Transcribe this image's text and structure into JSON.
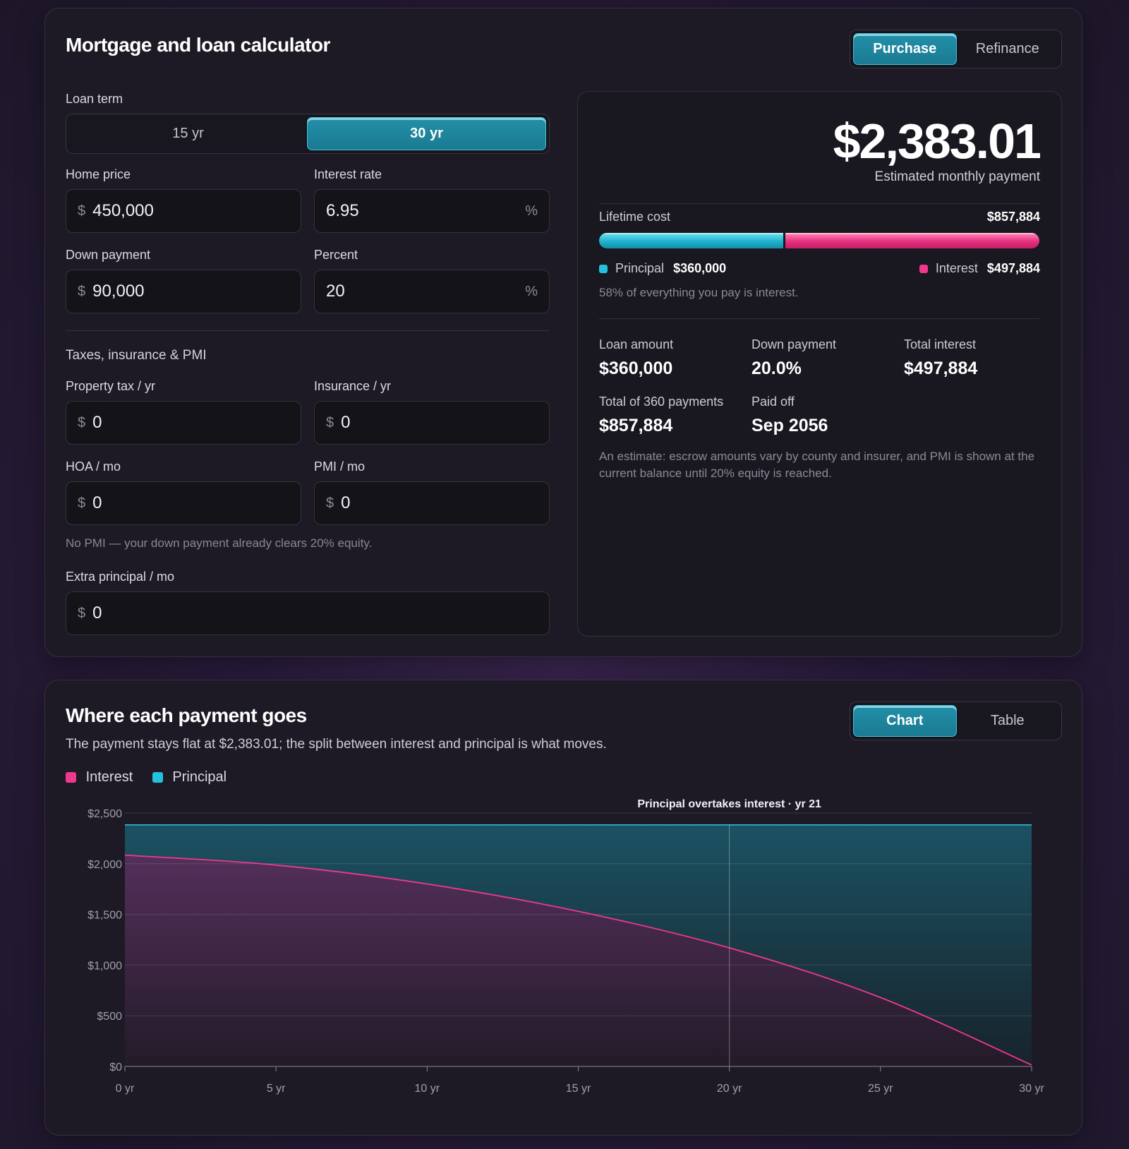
{
  "header": {
    "title": "Mortgage and loan calculator",
    "modes": [
      {
        "label": "Purchase",
        "active": true
      },
      {
        "label": "Refinance",
        "active": false
      }
    ]
  },
  "loan_term": {
    "label": "Loan term",
    "options": [
      {
        "label": "15 yr",
        "active": false
      },
      {
        "label": "30 yr",
        "active": true
      }
    ]
  },
  "fields": {
    "home_price": {
      "label": "Home price",
      "prefix": "$",
      "value": "450,000"
    },
    "interest_rate": {
      "label": "Interest rate",
      "value": "6.95",
      "suffix": "%"
    },
    "down_payment": {
      "label": "Down payment",
      "prefix": "$",
      "value": "90,000"
    },
    "percent": {
      "label": "Percent",
      "value": "20",
      "suffix": "%"
    },
    "property_tax": {
      "label": "Property tax / yr",
      "prefix": "$",
      "value": "0"
    },
    "insurance": {
      "label": "Insurance / yr",
      "prefix": "$",
      "value": "0"
    },
    "hoa": {
      "label": "HOA / mo",
      "prefix": "$",
      "value": "0"
    },
    "pmi": {
      "label": "PMI / mo",
      "prefix": "$",
      "value": "0"
    },
    "extra_principal": {
      "label": "Extra principal / mo",
      "prefix": "$",
      "value": "0"
    }
  },
  "taxes_section": {
    "label": "Taxes, insurance & PMI"
  },
  "pmi_hint": "No PMI — your down payment already clears 20% equity.",
  "summary": {
    "monthly_payment": "$2,383.01",
    "monthly_label": "Estimated monthly payment",
    "lifetime_label": "Lifetime cost",
    "lifetime_value": "$857,884",
    "principal_fraction": 0.42,
    "principal_label": "Principal",
    "principal_value": "$360,000",
    "interest_label": "Interest",
    "interest_value": "$497,884",
    "interest_note": "58% of everything you pay is interest.",
    "stats": {
      "loan_amount": {
        "label": "Loan amount",
        "value": "$360,000"
      },
      "down_payment": {
        "label": "Down payment",
        "value": "20.0%"
      },
      "total_interest": {
        "label": "Total interest",
        "value": "$497,884"
      },
      "total_payments": {
        "label": "Total of 360 payments",
        "value": "$857,884"
      },
      "paid_off": {
        "label": "Paid off",
        "value": "Sep 2056"
      }
    },
    "disclaimer": "An estimate: escrow amounts vary by county and insurer, and PMI is shown at the current balance until 20% equity is reached."
  },
  "chart_section": {
    "title": "Where each payment goes",
    "subtitle": "The payment stays flat at $2,383.01; the split between interest and principal is what moves.",
    "views": [
      {
        "label": "Chart",
        "active": true
      },
      {
        "label": "Table",
        "active": false
      }
    ],
    "legend": [
      {
        "label": "Interest",
        "color": "#f0388e"
      },
      {
        "label": "Principal",
        "color": "#22c2dc"
      }
    ]
  },
  "chart_data": {
    "type": "area",
    "annotation": "Principal overtakes interest · yr 21",
    "crossover_year": 20,
    "xlim": [
      0,
      30
    ],
    "ylim": [
      0,
      2500
    ],
    "x_ticks": [
      0,
      5,
      10,
      15,
      20,
      25,
      30
    ],
    "x_tick_labels": [
      "0 yr",
      "5 yr",
      "10 yr",
      "15 yr",
      "20 yr",
      "25 yr",
      "30 yr"
    ],
    "y_ticks": [
      0,
      500,
      1000,
      1500,
      2000,
      2500
    ],
    "y_tick_labels": [
      "$0",
      "$500",
      "$1,000",
      "$1,500",
      "$2,000",
      "$2,500"
    ],
    "grid": true,
    "series": [
      {
        "name": "Interest",
        "color": "#f0388e",
        "x": [
          0,
          5,
          10,
          15,
          20,
          25,
          30
        ],
        "values": [
          2085,
          1987,
          1800,
          1530,
          1170,
          680,
          14
        ]
      },
      {
        "name": "Principal",
        "color": "#22c2dc",
        "x": [
          0,
          30
        ],
        "values": [
          2383,
          2383
        ]
      }
    ]
  }
}
